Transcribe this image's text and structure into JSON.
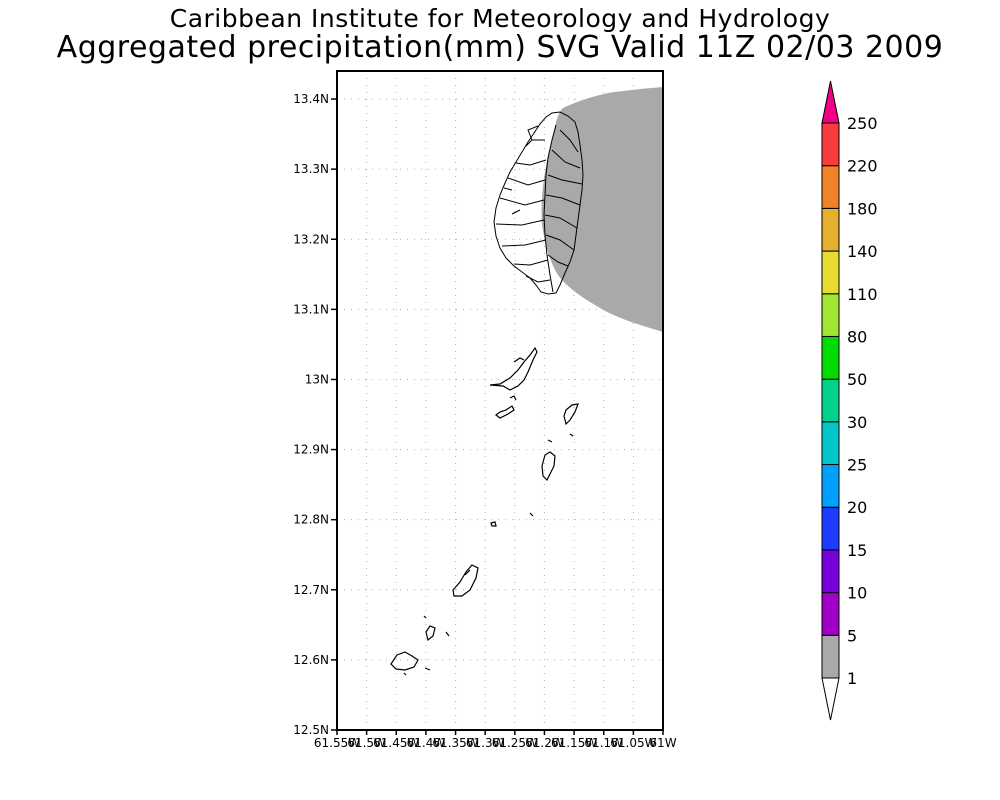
{
  "header": {
    "title": "Caribbean Institute for Meteorology and Hydrology",
    "subtitle": "Aggregated precipitation(mm) SVG Valid 11Z 02/03 2009"
  },
  "map": {
    "lat_ticks": [
      "13.4N",
      "13.3N",
      "13.2N",
      "13.1N",
      "13N",
      "12.9N",
      "12.8N",
      "12.7N",
      "12.6N",
      "12.5N"
    ],
    "lon_ticks": [
      "61.55W",
      "61.5W",
      "61.45W",
      "61.4W",
      "61.35W",
      "61.3W",
      "61.25W",
      "61.2W",
      "61.15W",
      "61.1W",
      "61.05W",
      "61W"
    ],
    "lat_range": [
      12.5,
      13.44
    ],
    "lon_range": [
      -61.55,
      -61.0
    ],
    "grid": "dotted",
    "precip_fill_color": "#a9a9a9"
  },
  "colorbar": {
    "levels": [
      "1",
      "5",
      "10",
      "15",
      "20",
      "25",
      "30",
      "50",
      "80",
      "110",
      "140",
      "180",
      "220",
      "250"
    ],
    "colors": [
      "#a9a9a9",
      "#a000c8",
      "#7800dc",
      "#1e3cff",
      "#00a0ff",
      "#00c8c8",
      "#00d28c",
      "#00dc00",
      "#a0e632",
      "#e6dc32",
      "#e6af2d",
      "#f08228",
      "#fa3c3c",
      "#f00082"
    ]
  }
}
